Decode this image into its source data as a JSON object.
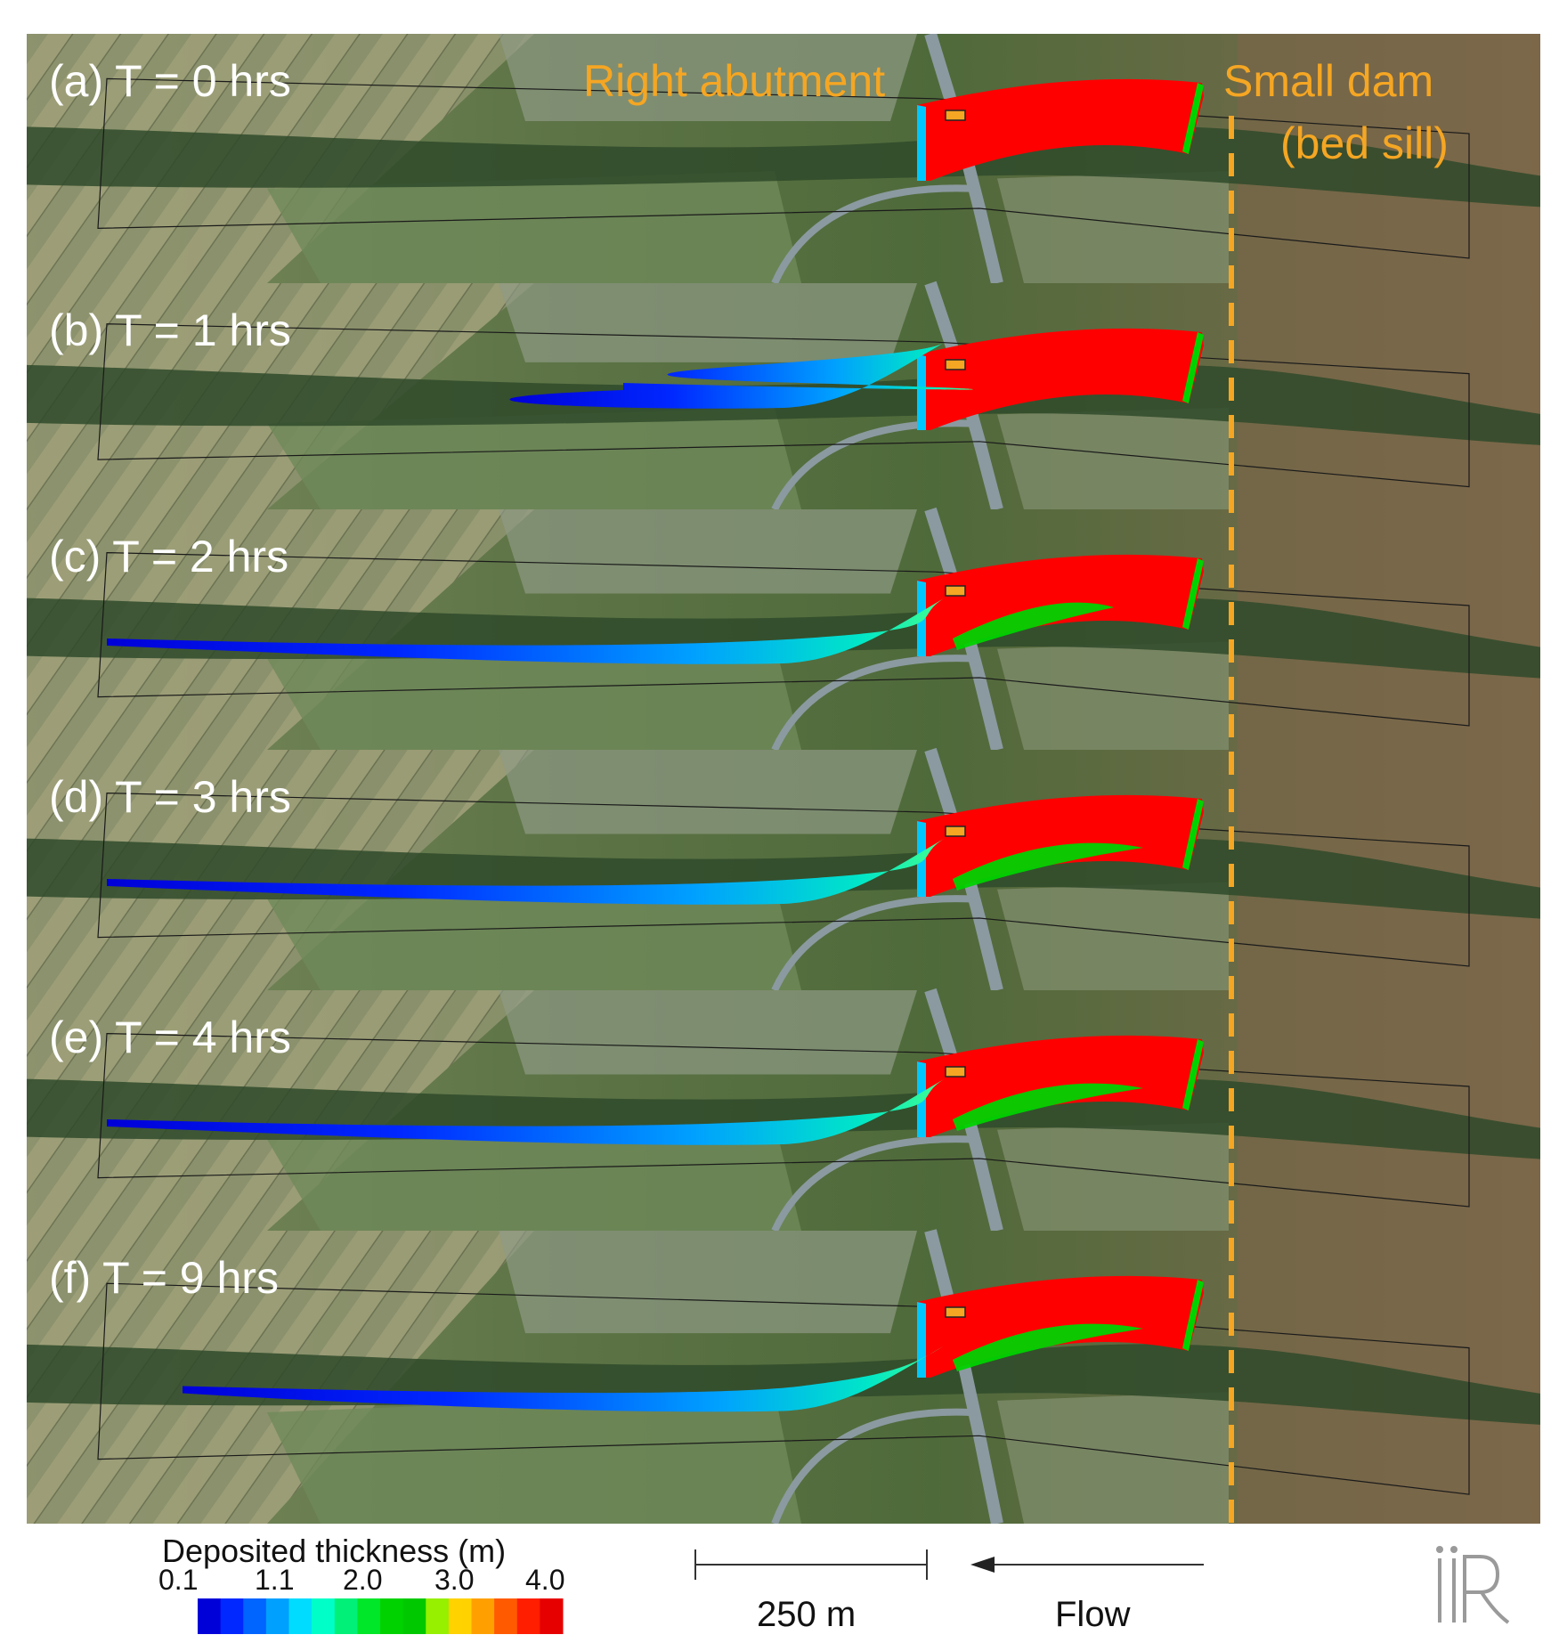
{
  "panels": [
    {
      "label": "(a) T = 0 hrs",
      "hours": 0
    },
    {
      "label": "(b) T = 1 hrs",
      "hours": 1
    },
    {
      "label": "(c) T = 2 hrs",
      "hours": 2
    },
    {
      "label": "(d) T = 3 hrs",
      "hours": 3
    },
    {
      "label": "(e) T = 4 hrs",
      "hours": 4
    },
    {
      "label": "(f) T = 9 hrs",
      "hours": 9
    }
  ],
  "annotations": {
    "right_abutment": "Right abutment",
    "small_dam_line1": "Small dam",
    "small_dam_line2": "(bed sill)"
  },
  "legend": {
    "title": "Deposited thickness (m)",
    "ticks": [
      "0.1",
      "1.1",
      "2.0",
      "3.0",
      "4.0"
    ],
    "colors": [
      "#0000d8",
      "#0028ff",
      "#0064ff",
      "#00a0ff",
      "#00dcff",
      "#00ffc8",
      "#00f078",
      "#00e628",
      "#00d200",
      "#00c800",
      "#96f000",
      "#ffd200",
      "#ffa000",
      "#ff5a00",
      "#ff1e00",
      "#e60000"
    ]
  },
  "scale_bar": {
    "label": "250 m"
  },
  "flow": {
    "label": "Flow"
  },
  "colors": {
    "annotation": "#f5a623",
    "deposit_max": "#ff0000",
    "deposit_mid": "#00d200",
    "deposit_low": "#0028ff"
  }
}
